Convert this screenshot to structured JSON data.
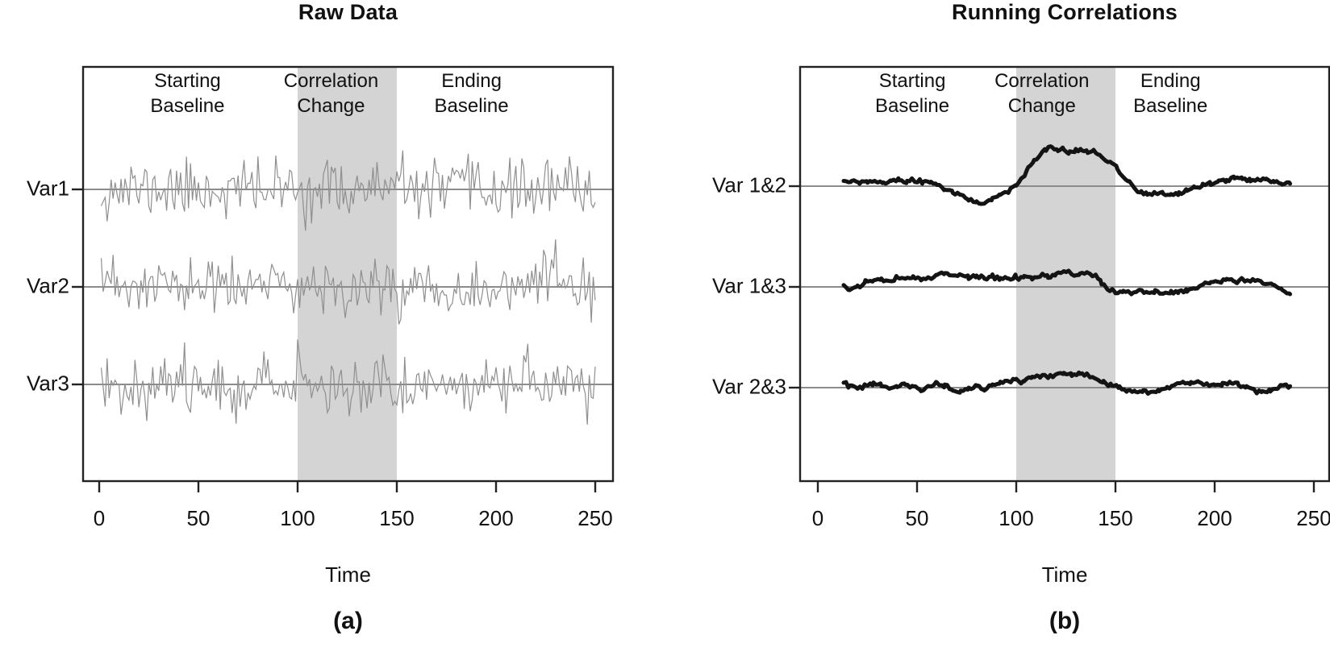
{
  "figure": {
    "panels": [
      {
        "title": "Raw Data",
        "xlabel": "Time",
        "caption": "(a)",
        "row_labels": [
          "Var1",
          "Var2",
          "Var3"
        ],
        "region_labels": [
          [
            "Starting",
            "Baseline"
          ],
          [
            "Correlation",
            "Change"
          ],
          [
            "Ending",
            "Baseline"
          ]
        ],
        "x_tick_labels": [
          "0",
          "50",
          "100",
          "150",
          "200",
          "250"
        ]
      },
      {
        "title": "Running Correlations",
        "xlabel": "Time",
        "caption": "(b)",
        "row_labels": [
          "Var 1&2",
          "Var 1&3",
          "Var 2&3"
        ],
        "region_labels": [
          [
            "Starting",
            "Baseline"
          ],
          [
            "Correlation",
            "Change"
          ],
          [
            "Ending",
            "Baseline"
          ]
        ],
        "x_tick_labels": [
          "0",
          "50",
          "100",
          "150",
          "200",
          "250"
        ]
      }
    ]
  },
  "style": {
    "band_color": "#d4d4d4",
    "noise_line_color": "#8f8f8f",
    "baseline_color": "#8c8c8c",
    "correlation_line_color": "#141414",
    "box_color": "#222222",
    "tick_color": "#222222",
    "text_color": "#111111"
  },
  "chart_data": [
    {
      "type": "line",
      "panel": "a",
      "title": "Raw Data",
      "xlabel": "Time",
      "xlim": [
        0,
        250
      ],
      "x_ticks": [
        0,
        50,
        100,
        150,
        200,
        250
      ],
      "rows": [
        "Var1",
        "Var2",
        "Var3"
      ],
      "highlight_band": {
        "from": 100,
        "to": 150
      },
      "annotations": [
        {
          "text": "Starting Baseline",
          "x": 50
        },
        {
          "text": "Correlation Change",
          "x": 122
        },
        {
          "text": "Ending Baseline",
          "x": 195
        }
      ],
      "units": "row-relative amplitude; 1.0 equals half of one row spacing; each series drawn about its own zero baseline",
      "series": [
        {
          "name": "Var1",
          "kind": "white-noise",
          "n": 250,
          "mean": 0,
          "sd": 0.3,
          "seed": 11
        },
        {
          "name": "Var2",
          "kind": "white-noise",
          "n": 250,
          "mean": 0,
          "sd": 0.3,
          "seed": 23
        },
        {
          "name": "Var3",
          "kind": "white-noise",
          "n": 250,
          "mean": 0,
          "sd": 0.3,
          "seed": 37
        }
      ]
    },
    {
      "type": "line",
      "panel": "b",
      "title": "Running Correlations",
      "xlabel": "Time",
      "xlim": [
        0,
        250
      ],
      "x_ticks": [
        0,
        50,
        100,
        150,
        200,
        250
      ],
      "rows": [
        "Var 1&2",
        "Var 1&3",
        "Var 2&3"
      ],
      "highlight_band": {
        "from": 100,
        "to": 150
      },
      "annotations": [
        {
          "text": "Starting Baseline",
          "x": 50
        },
        {
          "text": "Correlation Change",
          "x": 122
        },
        {
          "text": "Ending Baseline",
          "x": 195
        }
      ],
      "units": "running correlation offset from each pair's baseline (approx. r units, estimated from plot)",
      "series": [
        {
          "name": "Var 1&2",
          "kind": "running-correlation",
          "jitter_seed": 51,
          "points": [
            [
              13,
              0.07
            ],
            [
              17,
              0.1
            ],
            [
              21,
              0.06
            ],
            [
              25,
              0.09
            ],
            [
              29,
              0.11
            ],
            [
              33,
              0.07
            ],
            [
              37,
              0.1
            ],
            [
              41,
              0.12
            ],
            [
              45,
              0.08
            ],
            [
              49,
              0.11
            ],
            [
              53,
              0.09
            ],
            [
              57,
              0.06
            ],
            [
              60,
              0.01
            ],
            [
              64,
              -0.06
            ],
            [
              68,
              -0.12
            ],
            [
              72,
              -0.18
            ],
            [
              76,
              -0.26
            ],
            [
              80,
              -0.33
            ],
            [
              84,
              -0.35
            ],
            [
              88,
              -0.27
            ],
            [
              92,
              -0.18
            ],
            [
              96,
              -0.1
            ],
            [
              100,
              0.02
            ],
            [
              103,
              0.18
            ],
            [
              106,
              0.38
            ],
            [
              109,
              0.52
            ],
            [
              112,
              0.63
            ],
            [
              115,
              0.76
            ],
            [
              118,
              0.8
            ],
            [
              121,
              0.76
            ],
            [
              124,
              0.78
            ],
            [
              127,
              0.66
            ],
            [
              130,
              0.74
            ],
            [
              133,
              0.76
            ],
            [
              136,
              0.72
            ],
            [
              139,
              0.74
            ],
            [
              142,
              0.62
            ],
            [
              145,
              0.55
            ],
            [
              148,
              0.46
            ],
            [
              151,
              0.34
            ],
            [
              154,
              0.2
            ],
            [
              157,
              0.07
            ],
            [
              160,
              -0.06
            ],
            [
              163,
              -0.14
            ],
            [
              166,
              -0.17
            ],
            [
              170,
              -0.13
            ],
            [
              174,
              -0.17
            ],
            [
              178,
              -0.19
            ],
            [
              182,
              -0.15
            ],
            [
              186,
              -0.11
            ],
            [
              190,
              -0.04
            ],
            [
              194,
              0.02
            ],
            [
              198,
              0.06
            ],
            [
              202,
              0.1
            ],
            [
              206,
              0.13
            ],
            [
              210,
              0.18
            ],
            [
              214,
              0.15
            ],
            [
              218,
              0.11
            ],
            [
              222,
              0.14
            ],
            [
              226,
              0.12
            ],
            [
              230,
              0.08
            ],
            [
              234,
              0.06
            ],
            [
              238,
              0.05
            ]
          ]
        },
        {
          "name": "Var 1&3",
          "kind": "running-correlation",
          "jitter_seed": 52,
          "points": [
            [
              13,
              0.0
            ],
            [
              16,
              -0.05
            ],
            [
              20,
              0.02
            ],
            [
              24,
              0.1
            ],
            [
              28,
              0.14
            ],
            [
              32,
              0.17
            ],
            [
              36,
              0.12
            ],
            [
              40,
              0.2
            ],
            [
              44,
              0.17
            ],
            [
              48,
              0.22
            ],
            [
              52,
              0.14
            ],
            [
              56,
              0.19
            ],
            [
              60,
              0.26
            ],
            [
              64,
              0.28
            ],
            [
              68,
              0.22
            ],
            [
              72,
              0.26
            ],
            [
              76,
              0.2
            ],
            [
              80,
              0.23
            ],
            [
              84,
              0.18
            ],
            [
              88,
              0.22
            ],
            [
              92,
              0.16
            ],
            [
              96,
              0.2
            ],
            [
              100,
              0.18
            ],
            [
              104,
              0.22
            ],
            [
              108,
              0.19
            ],
            [
              112,
              0.24
            ],
            [
              116,
              0.22
            ],
            [
              120,
              0.28
            ],
            [
              124,
              0.33
            ],
            [
              128,
              0.28
            ],
            [
              132,
              0.25
            ],
            [
              136,
              0.28
            ],
            [
              140,
              0.24
            ],
            [
              143,
              0.05
            ],
            [
              146,
              -0.05
            ],
            [
              150,
              -0.1
            ],
            [
              154,
              -0.07
            ],
            [
              158,
              -0.12
            ],
            [
              162,
              -0.08
            ],
            [
              166,
              -0.13
            ],
            [
              170,
              -0.09
            ],
            [
              174,
              -0.14
            ],
            [
              178,
              -0.1
            ],
            [
              182,
              -0.12
            ],
            [
              186,
              -0.07
            ],
            [
              190,
              -0.02
            ],
            [
              194,
              0.04
            ],
            [
              198,
              0.08
            ],
            [
              202,
              0.12
            ],
            [
              206,
              0.15
            ],
            [
              210,
              0.13
            ],
            [
              214,
              0.16
            ],
            [
              218,
              0.12
            ],
            [
              222,
              0.14
            ],
            [
              226,
              0.08
            ],
            [
              230,
              0.02
            ],
            [
              234,
              -0.06
            ],
            [
              238,
              -0.15
            ]
          ]
        },
        {
          "name": "Var 2&3",
          "kind": "running-correlation",
          "jitter_seed": 53,
          "points": [
            [
              13,
              0.08
            ],
            [
              16,
              0.04
            ],
            [
              20,
              -0.02
            ],
            [
              24,
              0.05
            ],
            [
              28,
              0.08
            ],
            [
              32,
              0.04
            ],
            [
              36,
              -0.04
            ],
            [
              40,
              0.03
            ],
            [
              44,
              0.07
            ],
            [
              48,
              0.02
            ],
            [
              52,
              -0.05
            ],
            [
              56,
              0.03
            ],
            [
              60,
              0.07
            ],
            [
              64,
              0.03
            ],
            [
              68,
              -0.04
            ],
            [
              72,
              -0.08
            ],
            [
              76,
              -0.03
            ],
            [
              80,
              0.04
            ],
            [
              84,
              -0.02
            ],
            [
              88,
              0.04
            ],
            [
              92,
              0.09
            ],
            [
              96,
              0.13
            ],
            [
              100,
              0.16
            ],
            [
              104,
              0.14
            ],
            [
              108,
              0.2
            ],
            [
              112,
              0.23
            ],
            [
              116,
              0.21
            ],
            [
              120,
              0.27
            ],
            [
              124,
              0.3
            ],
            [
              128,
              0.26
            ],
            [
              132,
              0.32
            ],
            [
              136,
              0.25
            ],
            [
              140,
              0.18
            ],
            [
              144,
              0.1
            ],
            [
              148,
              0.05
            ],
            [
              152,
              0.0
            ],
            [
              156,
              -0.06
            ],
            [
              160,
              -0.1
            ],
            [
              164,
              -0.07
            ],
            [
              168,
              -0.11
            ],
            [
              172,
              -0.06
            ],
            [
              176,
              0.0
            ],
            [
              180,
              0.06
            ],
            [
              184,
              0.11
            ],
            [
              188,
              0.08
            ],
            [
              192,
              0.13
            ],
            [
              196,
              0.07
            ],
            [
              200,
              0.04
            ],
            [
              204,
              0.09
            ],
            [
              208,
              0.12
            ],
            [
              212,
              0.07
            ],
            [
              216,
              0.02
            ],
            [
              220,
              -0.05
            ],
            [
              224,
              -0.08
            ],
            [
              228,
              -0.04
            ],
            [
              232,
              0.02
            ],
            [
              236,
              0.04
            ],
            [
              238,
              0.03
            ]
          ]
        }
      ]
    }
  ]
}
